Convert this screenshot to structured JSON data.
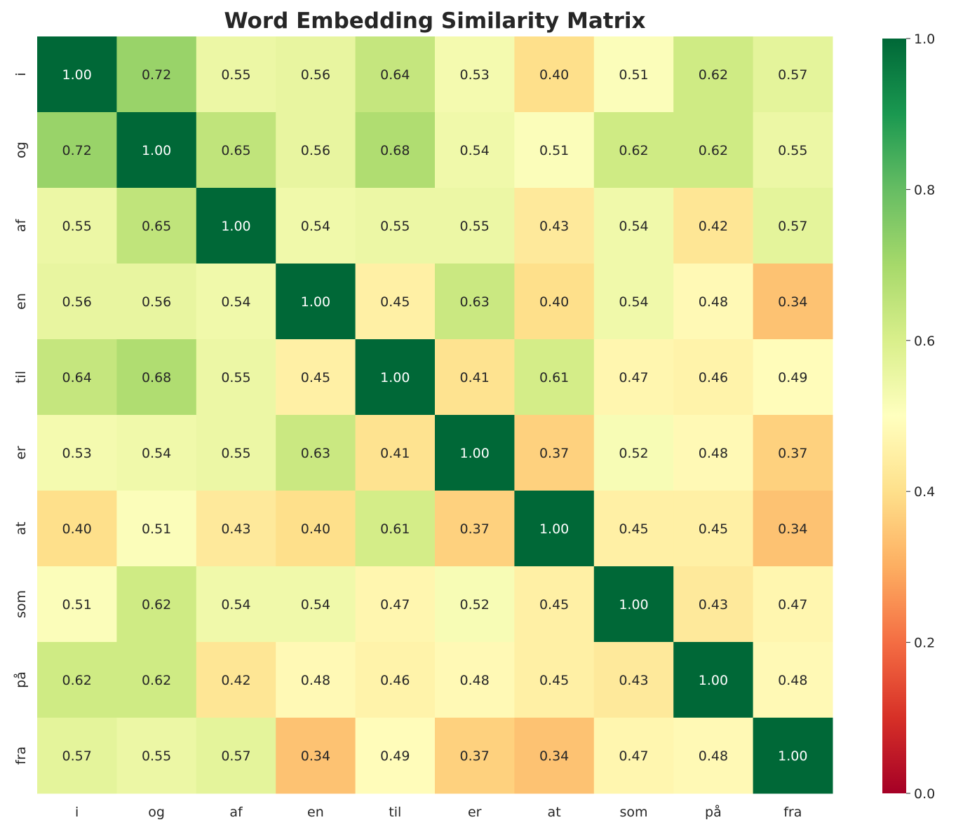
{
  "chart_data": {
    "type": "heatmap",
    "title": "Word Embedding Similarity Matrix",
    "x_labels": [
      "i",
      "og",
      "af",
      "en",
      "til",
      "er",
      "at",
      "som",
      "på",
      "fra"
    ],
    "y_labels": [
      "i",
      "og",
      "af",
      "en",
      "til",
      "er",
      "at",
      "som",
      "på",
      "fra"
    ],
    "values": [
      [
        1.0,
        0.72,
        0.55,
        0.56,
        0.64,
        0.53,
        0.4,
        0.51,
        0.62,
        0.57
      ],
      [
        0.72,
        1.0,
        0.65,
        0.56,
        0.68,
        0.54,
        0.51,
        0.62,
        0.62,
        0.55
      ],
      [
        0.55,
        0.65,
        1.0,
        0.54,
        0.55,
        0.55,
        0.43,
        0.54,
        0.42,
        0.57
      ],
      [
        0.56,
        0.56,
        0.54,
        1.0,
        0.45,
        0.63,
        0.4,
        0.54,
        0.48,
        0.34
      ],
      [
        0.64,
        0.68,
        0.55,
        0.45,
        1.0,
        0.41,
        0.61,
        0.47,
        0.46,
        0.49
      ],
      [
        0.53,
        0.54,
        0.55,
        0.63,
        0.41,
        1.0,
        0.37,
        0.52,
        0.48,
        0.37
      ],
      [
        0.4,
        0.51,
        0.43,
        0.4,
        0.61,
        0.37,
        1.0,
        0.45,
        0.45,
        0.34
      ],
      [
        0.51,
        0.62,
        0.54,
        0.54,
        0.47,
        0.52,
        0.45,
        1.0,
        0.43,
        0.47
      ],
      [
        0.62,
        0.62,
        0.42,
        0.48,
        0.46,
        0.48,
        0.45,
        0.43,
        1.0,
        0.48
      ],
      [
        0.57,
        0.55,
        0.57,
        0.34,
        0.49,
        0.37,
        0.34,
        0.47,
        0.48,
        1.0
      ]
    ],
    "colormap": "RdYlGn",
    "vmin": 0.0,
    "vmax": 1.0,
    "colorbar_ticks": [
      "0.0",
      "0.2",
      "0.4",
      "0.6",
      "0.8",
      "1.0"
    ],
    "annotation_format": "2 decimals",
    "grid": false,
    "legend": "colorbar-right"
  }
}
